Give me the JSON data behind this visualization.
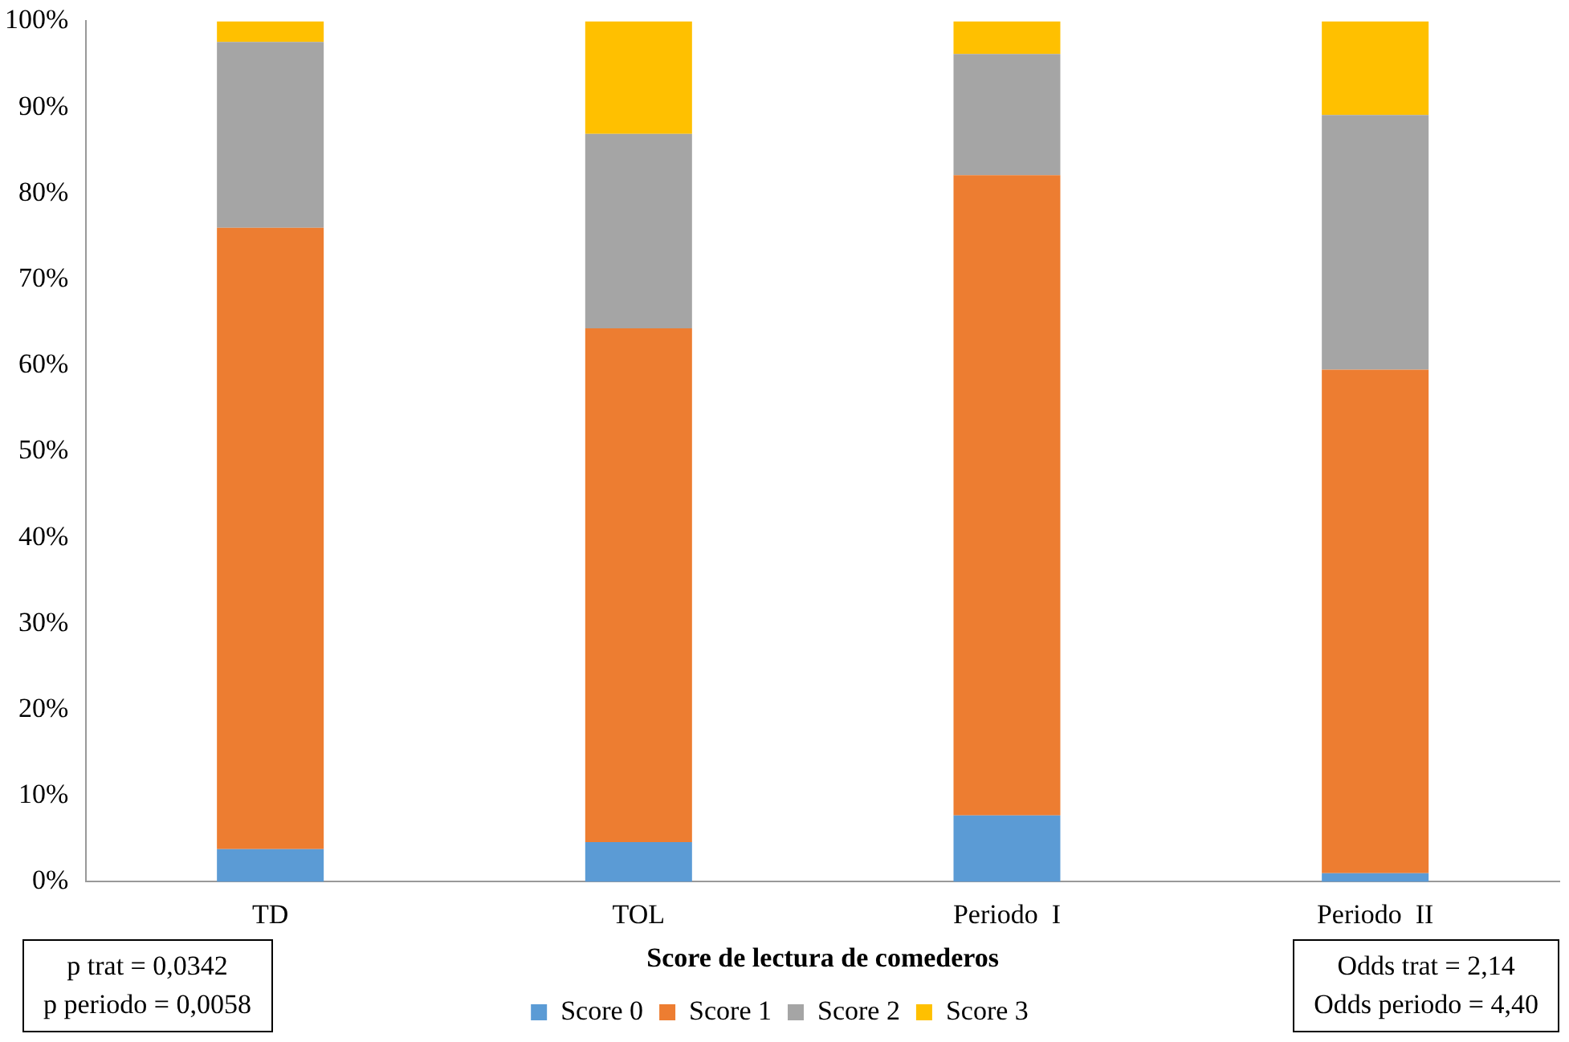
{
  "chart_data": {
    "type": "bar",
    "stacked": true,
    "xlabel": "Score de lectura de comederos",
    "categories": [
      "TD",
      "TOL",
      "Periodo  I",
      "Periodo  II"
    ],
    "series": [
      {
        "name": "Score 0",
        "color": "#5b9bd5",
        "values": [
          3.8,
          4.6,
          7.7,
          1.0
        ]
      },
      {
        "name": "Score 1",
        "color": "#ed7d31",
        "values": [
          72.2,
          59.7,
          74.4,
          58.5
        ]
      },
      {
        "name": "Score 2",
        "color": "#a5a5a5",
        "values": [
          21.6,
          22.6,
          14.1,
          29.6
        ]
      },
      {
        "name": "Score 3",
        "color": "#ffc000",
        "values": [
          2.4,
          13.1,
          3.8,
          10.9
        ]
      }
    ],
    "ylim": [
      0,
      100
    ],
    "yticks": [
      {
        "value": 0,
        "label": "0%"
      },
      {
        "value": 10,
        "label": "10%"
      },
      {
        "value": 20,
        "label": "20%"
      },
      {
        "value": 30,
        "label": "30%"
      },
      {
        "value": 40,
        "label": "40%"
      },
      {
        "value": 50,
        "label": "50%"
      },
      {
        "value": 60,
        "label": "60%"
      },
      {
        "value": 70,
        "label": "70%"
      },
      {
        "value": 80,
        "label": "80%"
      },
      {
        "value": 90,
        "label": "90%"
      },
      {
        "value": 100,
        "label": "100%"
      }
    ],
    "grid": false,
    "legend": "bottom",
    "annotations": [
      "p trat = 0,0342\np periodo = 0,0058",
      "Odds trat = 2,14\nOdds periodo = 4,40"
    ]
  }
}
